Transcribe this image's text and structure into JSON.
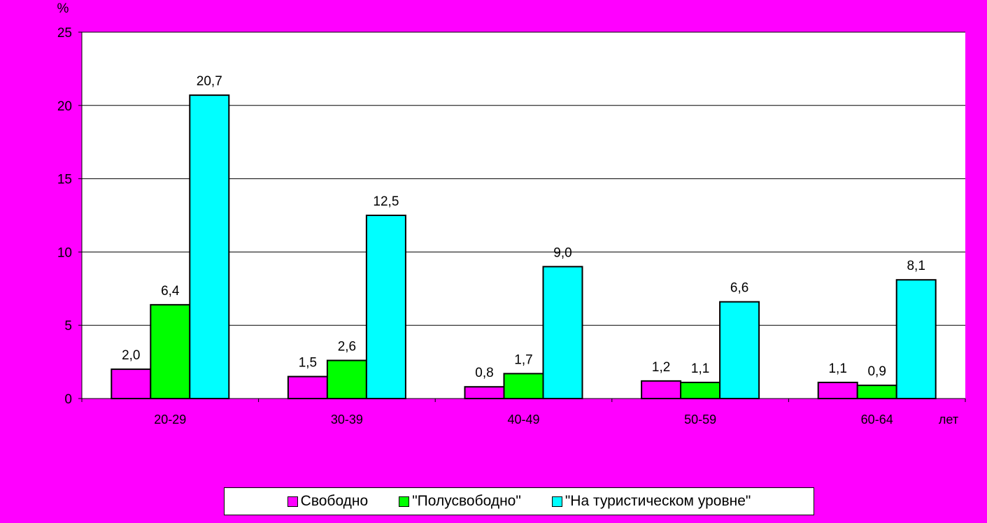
{
  "chart_data": {
    "type": "bar",
    "categories": [
      "20-29",
      "30-39",
      "40-49",
      "50-59",
      "60-64"
    ],
    "series": [
      {
        "name": "Свободно",
        "color": "#ff00ff",
        "values": [
          2.0,
          1.5,
          0.8,
          1.2,
          1.1
        ],
        "labels": [
          "2,0",
          "1,5",
          "0,8",
          "1,2",
          "1,1"
        ]
      },
      {
        "name": "\"Полусвободно\"",
        "color": "#00ff00",
        "values": [
          6.4,
          2.6,
          1.7,
          1.1,
          0.9
        ],
        "labels": [
          "6,4",
          "2,6",
          "1,7",
          "1,1",
          "0,9"
        ]
      },
      {
        "name": "\"На туристическом уровне\"",
        "color": "#00ffff",
        "values": [
          20.7,
          12.5,
          9.0,
          6.6,
          8.1
        ],
        "labels": [
          "20,7",
          "12,5",
          "9,0",
          "6,6",
          "8,1"
        ]
      }
    ],
    "yticks": [
      0,
      5,
      10,
      15,
      20,
      25
    ],
    "ylim": [
      0,
      25
    ],
    "ylabel": "%",
    "xlabel": "лет",
    "grid": true,
    "legend_position": "bottom",
    "plot_background": "#ffffff",
    "page_background": "#ff00ff"
  }
}
